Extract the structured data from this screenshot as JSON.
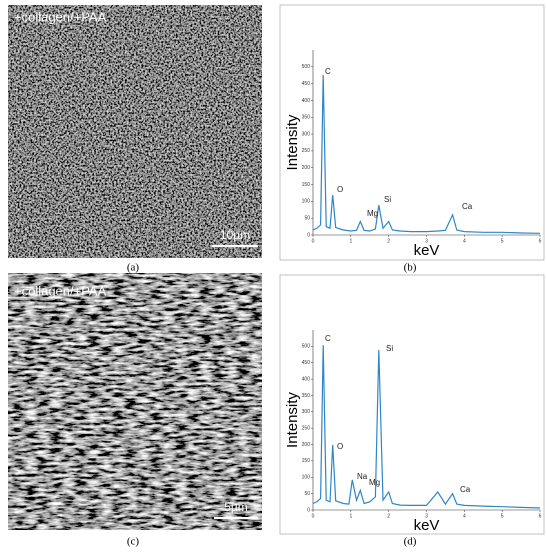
{
  "panels": [
    {
      "label": "(a)",
      "text": "+collagen/+PAA",
      "scale_bar": "10µm"
    },
    {
      "label": "(c)",
      "text": "+collagen/+PAA",
      "scale_bar": "5µm"
    }
  ],
  "chart_data": [
    {
      "type": "line",
      "label": "(b)",
      "x_label": "keV",
      "y_label": "Intensity",
      "color": "#2e86c8",
      "xlim": [
        0,
        6
      ],
      "xticks": [
        0,
        1,
        2,
        3,
        4,
        5,
        6
      ],
      "ylim": [
        0,
        550
      ],
      "yticks": [
        0,
        50,
        100,
        150,
        200,
        250,
        300,
        350,
        400,
        450,
        500
      ],
      "x": [
        0,
        0.1,
        0.2,
        0.27,
        0.35,
        0.45,
        0.52,
        0.6,
        0.8,
        1.0,
        1.15,
        1.25,
        1.35,
        1.5,
        1.65,
        1.74,
        1.85,
        2.0,
        2.1,
        2.3,
        2.6,
        3.0,
        3.3,
        3.5,
        3.69,
        3.8,
        4.0,
        4.5,
        5.0,
        5.5,
        6.0
      ],
      "values": [
        15,
        20,
        30,
        476,
        25,
        20,
        119,
        22,
        15,
        12,
        14,
        40,
        14,
        12,
        18,
        89,
        20,
        40,
        15,
        12,
        10,
        10,
        12,
        14,
        60,
        15,
        10,
        8,
        8,
        6,
        5
      ],
      "annotations": [
        "C",
        "O",
        "Mg",
        "Si",
        "Ca"
      ]
    },
    {
      "type": "line",
      "label": "(d)",
      "x_label": "keV",
      "y_label": "Intensity",
      "color": "#2e86c8",
      "xlim": [
        0,
        6
      ],
      "xticks": [
        0,
        1,
        2,
        3,
        4,
        5,
        6
      ],
      "ylim": [
        0,
        550
      ],
      "yticks": [
        0,
        50,
        100,
        150,
        200,
        250,
        300,
        350,
        400,
        450,
        500
      ],
      "x": [
        0,
        0.1,
        0.2,
        0.27,
        0.35,
        0.45,
        0.52,
        0.6,
        0.8,
        0.95,
        1.04,
        1.15,
        1.25,
        1.35,
        1.5,
        1.65,
        1.74,
        1.85,
        2.0,
        2.1,
        2.3,
        2.6,
        3.0,
        3.3,
        3.5,
        3.69,
        3.8,
        4.0,
        4.5,
        5.0,
        5.5,
        6.0
      ],
      "values": [
        20,
        25,
        35,
        504,
        30,
        25,
        199,
        28,
        20,
        18,
        92,
        30,
        60,
        20,
        25,
        40,
        489,
        30,
        55,
        20,
        15,
        14,
        14,
        55,
        18,
        50,
        18,
        14,
        12,
        10,
        8,
        6
      ],
      "annotations": [
        "C",
        "O",
        "Na",
        "Mg",
        "Si",
        "Ca"
      ]
    }
  ]
}
